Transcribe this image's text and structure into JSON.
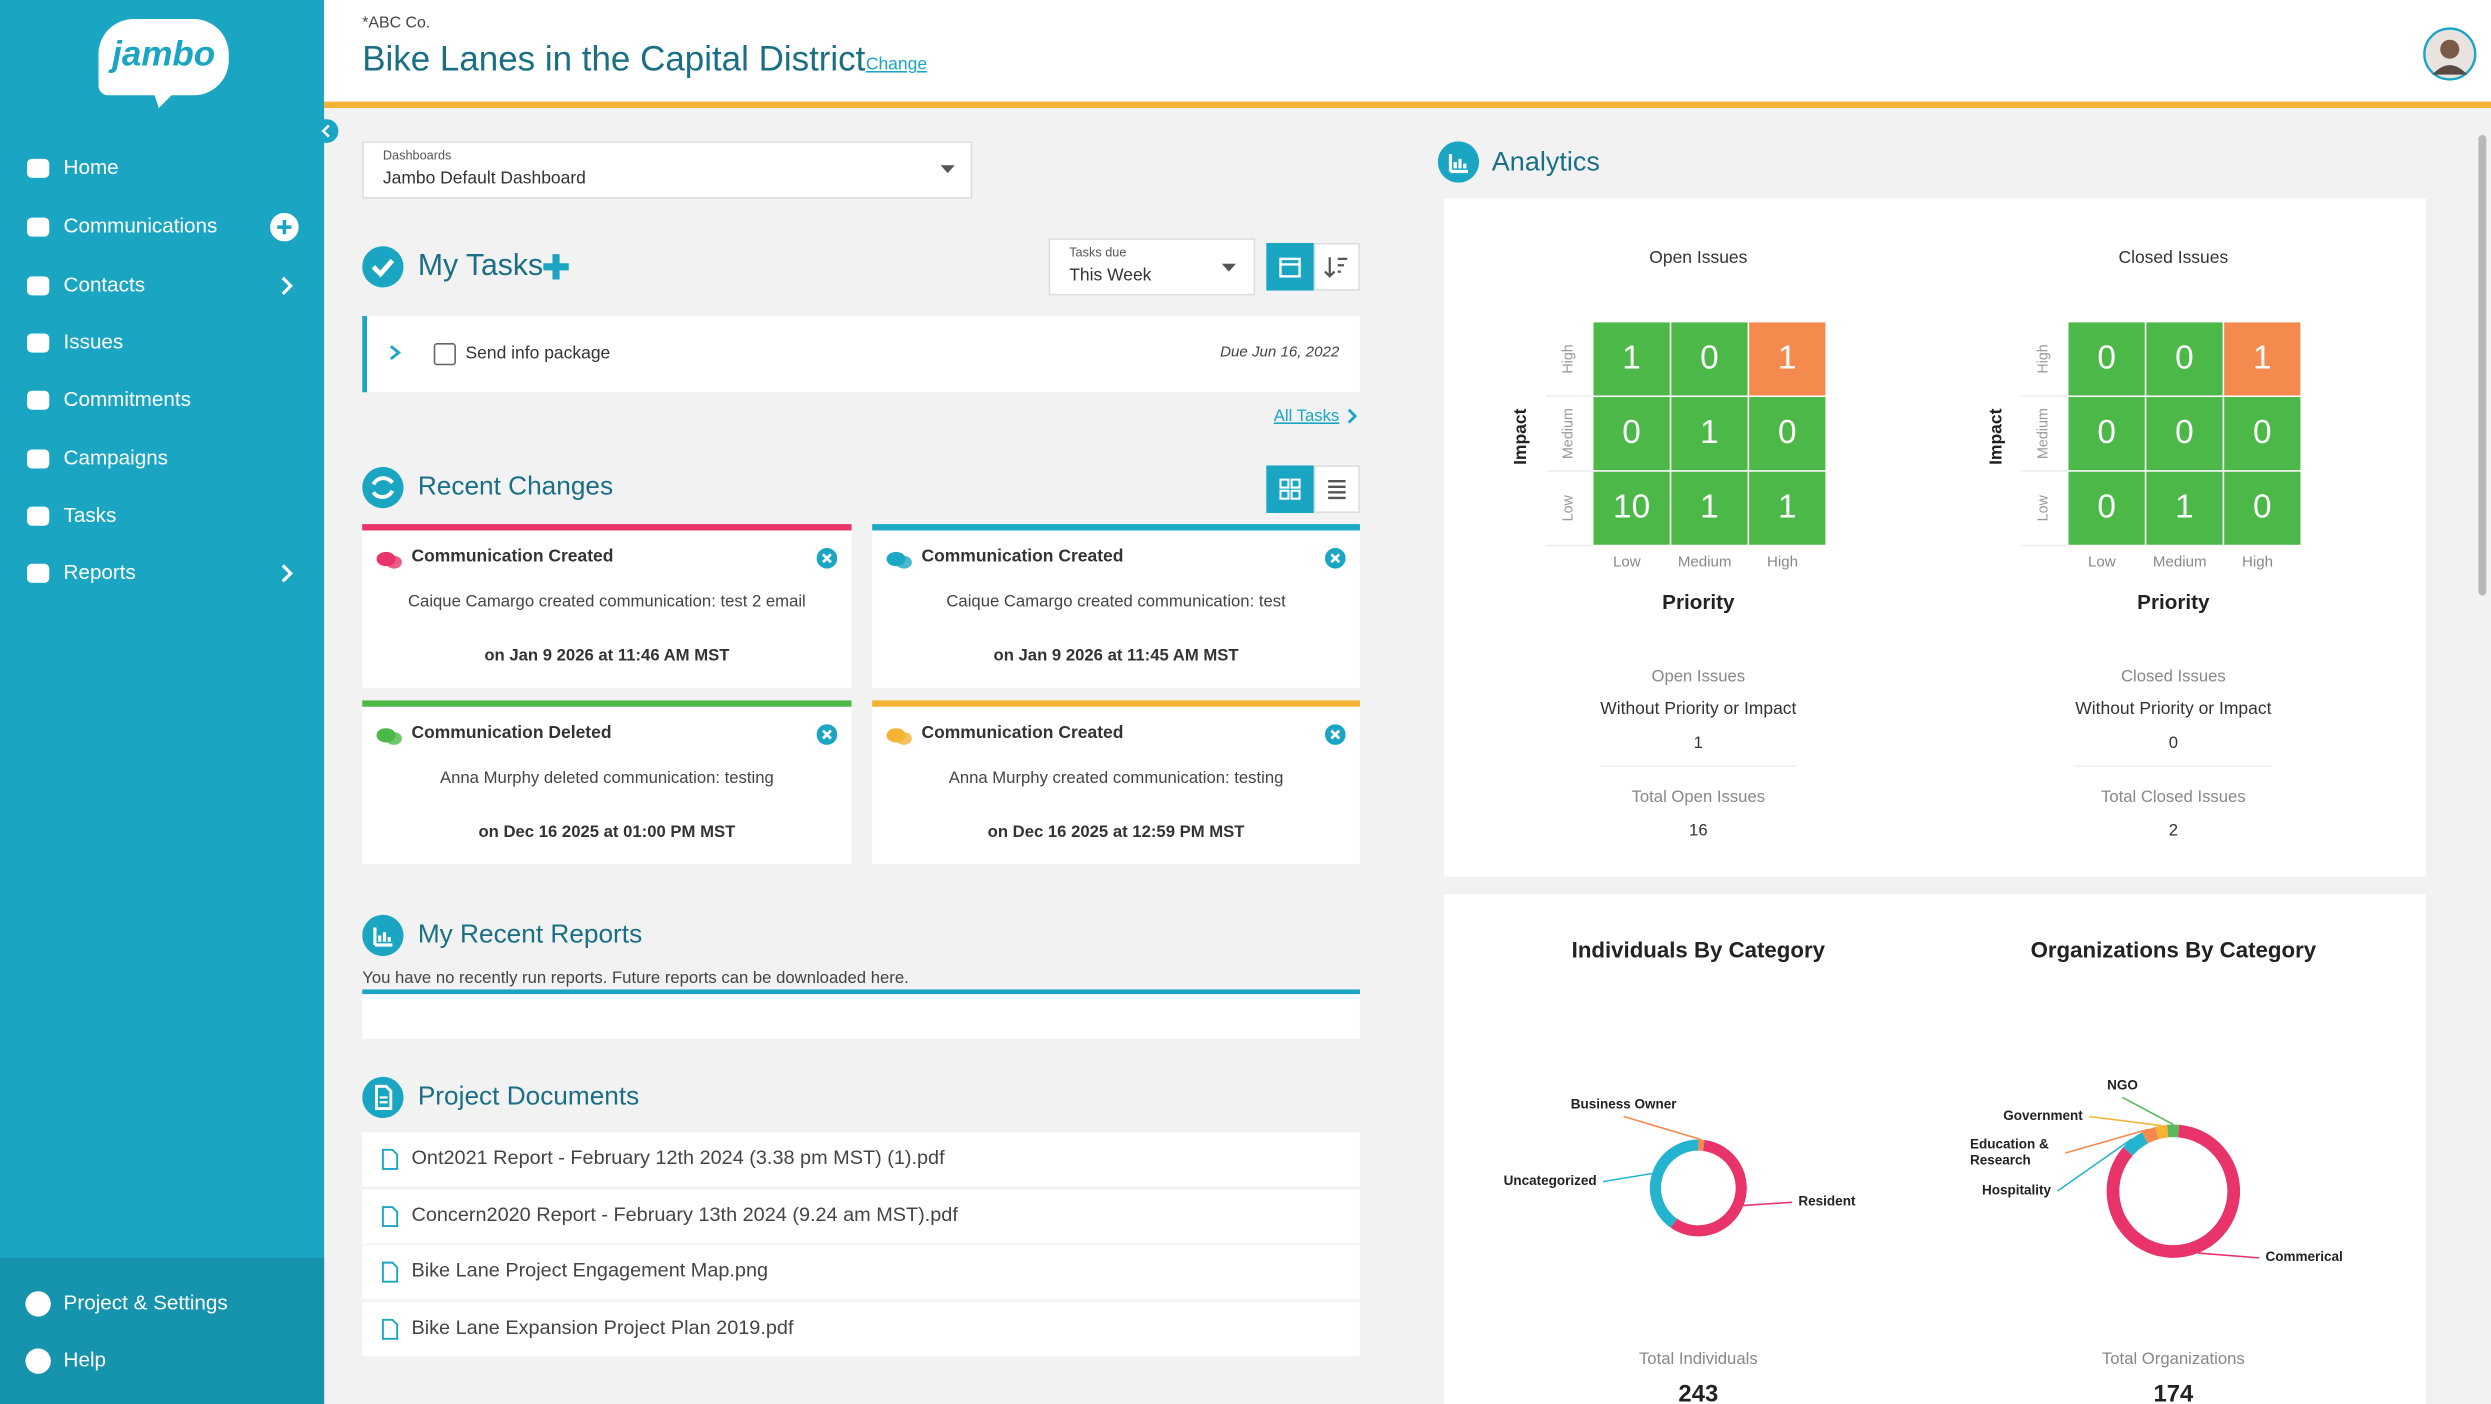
{
  "sidebar": {
    "logo": "jambo",
    "menu": [
      "Home",
      "Communications",
      "Contacts",
      "Issues",
      "Commitments",
      "Campaigns",
      "Tasks",
      "Reports"
    ],
    "footer": [
      "Project & Settings",
      "Help"
    ]
  },
  "header": {
    "org": "*ABC Co.",
    "title": "Bike Lanes in the Capital District",
    "change": "Change"
  },
  "dashboard_select": {
    "label": "Dashboards",
    "value": "Jambo Default Dashboard"
  },
  "tasks": {
    "title": "My Tasks",
    "filter_label": "Tasks due",
    "filter_value": "This Week",
    "items": [
      {
        "name": "Send info package",
        "due": "Due Jun 16, 2022"
      }
    ],
    "all_link": "All Tasks"
  },
  "recent_changes": {
    "title": "Recent Changes",
    "cards": [
      {
        "title": "Communication Created",
        "text": "Caique Camargo created communication: test 2 email",
        "date": "on Jan 9 2026 at 11:46 AM MST",
        "color": "#e8336b"
      },
      {
        "title": "Communication Created",
        "text": "Caique Camargo created communication: test",
        "date": "on Jan 9 2026 at 11:45 AM MST",
        "color": "#1ba8c4"
      },
      {
        "title": "Communication Deleted",
        "text": "Anna Murphy deleted communication: testing",
        "date": "on Dec 16 2025 at 01:00 PM MST",
        "color": "#4cb848"
      },
      {
        "title": "Communication Created",
        "text": "Anna Murphy created communication: testing",
        "date": "on Dec 16 2025 at 12:59 PM MST",
        "color": "#f5b335"
      }
    ]
  },
  "reports": {
    "title": "My Recent Reports",
    "empty": "You have no recently run reports. Future reports can be downloaded here."
  },
  "documents": {
    "title": "Project Documents",
    "files": [
      "Ont2021 Report - February 12th 2024 (3.38 pm MST) (1).pdf",
      "Concern2020 Report - February 13th 2024 (9.24 am MST).pdf",
      "Bike Lane Project Engagement Map.png",
      "Bike Lane Expansion Project Plan 2019.pdf"
    ]
  },
  "analytics": {
    "title": "Analytics",
    "colors": {
      "cell": "#4cb848",
      "alert": "#f58a4f"
    },
    "matrices": [
      {
        "title": "Open Issues",
        "impact_label": "Impact",
        "priority_label": "Priority",
        "rows": [
          "High",
          "Medium",
          "Low"
        ],
        "cols": [
          "Low",
          "Medium",
          "High"
        ],
        "cells": [
          [
            1,
            0,
            1
          ],
          [
            0,
            1,
            0
          ],
          [
            10,
            1,
            1
          ]
        ],
        "summary_title": "Open Issues",
        "summary_sub": "Without Priority or Impact",
        "without": 1,
        "total_label": "Total Open Issues",
        "total": 16
      },
      {
        "title": "Closed Issues",
        "impact_label": "Impact",
        "priority_label": "Priority",
        "rows": [
          "High",
          "Medium",
          "Low"
        ],
        "cols": [
          "Low",
          "Medium",
          "High"
        ],
        "cells": [
          [
            0,
            0,
            1
          ],
          [
            0,
            0,
            0
          ],
          [
            0,
            1,
            0
          ]
        ],
        "summary_title": "Closed Issues",
        "summary_sub": "Without Priority or Impact",
        "without": 0,
        "total_label": "Total Closed Issues",
        "total": 2
      }
    ],
    "donuts": [
      {
        "title": "Individuals By Category",
        "segments": [
          {
            "label": "Business Owner",
            "value": 5,
            "color": "#f58a4f"
          },
          {
            "label": "Resident",
            "value": 140,
            "color": "#e8336b"
          },
          {
            "label": "Uncategorized",
            "value": 98,
            "color": "#25b4cf"
          }
        ],
        "total_label": "Total Individuals",
        "total": 243
      },
      {
        "title": "Organizations By Category",
        "segments": [
          {
            "label": "Commerical",
            "value": 148,
            "color": "#e8336b"
          },
          {
            "label": "Hospitality",
            "value": 10,
            "color": "#25b4cf"
          },
          {
            "label": "Education & Research",
            "value": 6,
            "color": "#f58a4f"
          },
          {
            "label": "Government",
            "value": 5,
            "color": "#f5b335"
          },
          {
            "label": "NGO",
            "value": 5,
            "color": "#5cb85c"
          }
        ],
        "total_label": "Total Organizations",
        "total": 174
      }
    ]
  }
}
